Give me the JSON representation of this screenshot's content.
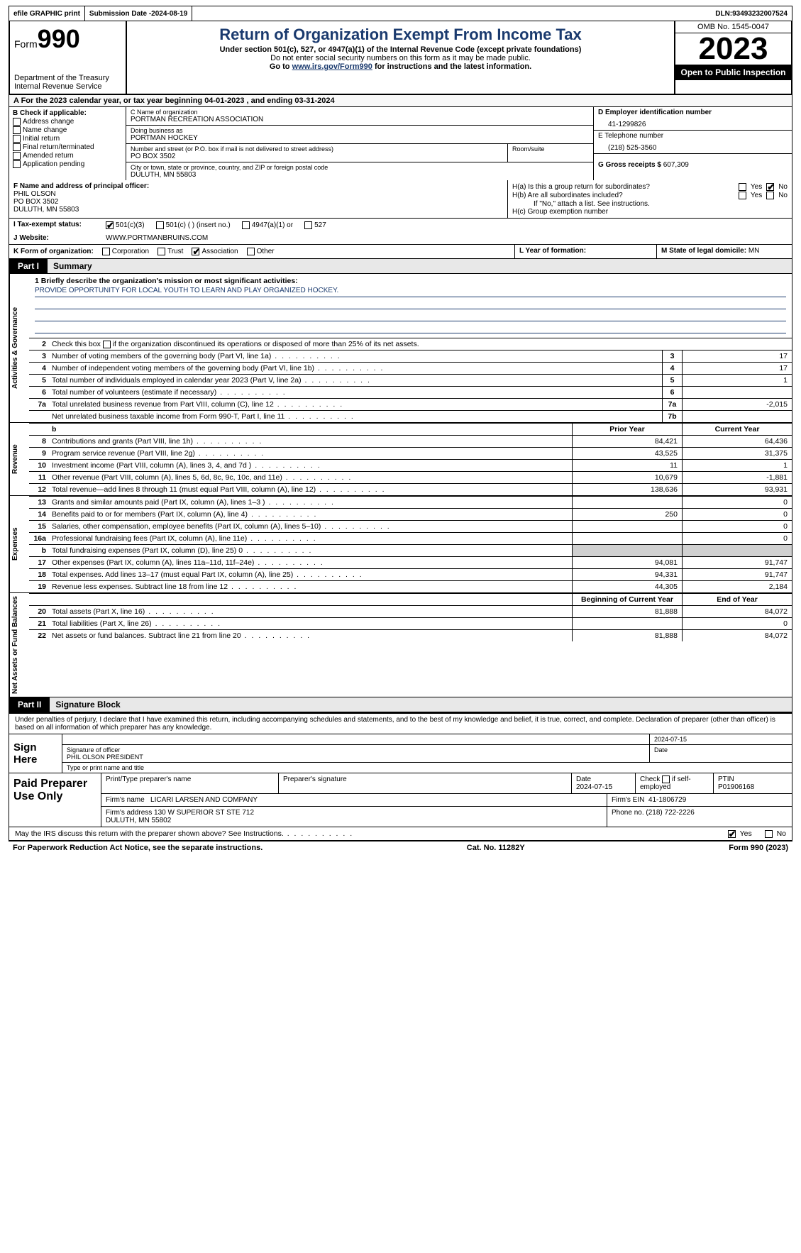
{
  "topbar": {
    "efile": "efile GRAPHIC print",
    "subdate_label": "Submission Date - ",
    "subdate": "2024-08-19",
    "dln_label": "DLN: ",
    "dln": "93493232007524"
  },
  "header": {
    "form_prefix": "Form",
    "form_num": "990",
    "dept": "Department of the Treasury\nInternal Revenue Service",
    "title": "Return of Organization Exempt From Income Tax",
    "sub1": "Under section 501(c), 527, or 4947(a)(1) of the Internal Revenue Code (except private foundations)",
    "sub2": "Do not enter social security numbers on this form as it may be made public.",
    "go_prefix": "Go to ",
    "go_link": "www.irs.gov/Form990",
    "go_suffix": " for instructions and the latest information.",
    "omb": "OMB No. 1545-0047",
    "year": "2023",
    "otpi": "Open to Public Inspection"
  },
  "row_a": "A For the 2023 calendar year, or tax year beginning 04-01-2023   , and ending 03-31-2024",
  "box_b": {
    "label": "B Check if applicable:",
    "items": [
      "Address change",
      "Name change",
      "Initial return",
      "Final return/terminated",
      "Amended return",
      "Application pending"
    ]
  },
  "box_c": {
    "name_lbl": "C Name of organization",
    "name": "PORTMAN RECREATION ASSOCIATION",
    "dba_lbl": "Doing business as",
    "dba": "PORTMAN HOCKEY",
    "street_lbl": "Number and street (or P.O. box if mail is not delivered to street address)",
    "street": "PO BOX 3502",
    "room_lbl": "Room/suite",
    "city_lbl": "City or town, state or province, country, and ZIP or foreign postal code",
    "city": "DULUTH, MN  55803"
  },
  "box_d": {
    "lbl": "D Employer identification number",
    "val": "41-1299826"
  },
  "box_e": {
    "lbl": "E Telephone number",
    "val": "(218) 525-3560"
  },
  "box_g": {
    "lbl": "G Gross receipts $",
    "val": "607,309"
  },
  "box_f": {
    "lbl": "F  Name and address of principal officer:",
    "name": "PHIL OLSON",
    "addr1": "PO BOX 3502",
    "addr2": "DULUTH, MN  55803"
  },
  "box_h": {
    "a": "H(a)  Is this a group return for subordinates?",
    "b": "H(b)  Are all subordinates included?",
    "note": "If \"No,\" attach a list. See instructions.",
    "c": "H(c)  Group exemption number"
  },
  "row_i": {
    "lbl": "I   Tax-exempt status:",
    "opts": [
      "501(c)(3)",
      "501(c) (  ) (insert no.)",
      "4947(a)(1) or",
      "527"
    ]
  },
  "row_j": {
    "lbl": "J   Website:",
    "val": "WWW.PORTMANBRUINS.COM"
  },
  "row_k": {
    "lbl": "K Form of organization:",
    "opts": [
      "Corporation",
      "Trust",
      "Association",
      "Other"
    ]
  },
  "box_l": {
    "lbl": "L Year of formation:",
    "val": ""
  },
  "box_m": {
    "lbl": "M State of legal domicile: ",
    "val": "MN"
  },
  "part1": {
    "tag": "Part I",
    "title": "Summary"
  },
  "mission": {
    "lbl": "1   Briefly describe the organization's mission or most significant activities:",
    "text": "PROVIDE OPPORTUNITY FOR LOCAL YOUTH TO LEARN AND PLAY ORGANIZED HOCKEY."
  },
  "line2": "Check this box        if the organization discontinued its operations or disposed of more than 25% of its net assets.",
  "vtabs": {
    "gov": "Activities & Governance",
    "rev": "Revenue",
    "exp": "Expenses",
    "net": "Net Assets or Fund Balances"
  },
  "gov_rows": [
    {
      "n": "3",
      "d": "Number of voting members of the governing body (Part VI, line 1a)",
      "b": "3",
      "v": "17"
    },
    {
      "n": "4",
      "d": "Number of independent voting members of the governing body (Part VI, line 1b)",
      "b": "4",
      "v": "17"
    },
    {
      "n": "5",
      "d": "Total number of individuals employed in calendar year 2023 (Part V, line 2a)",
      "b": "5",
      "v": "1"
    },
    {
      "n": "6",
      "d": "Total number of volunteers (estimate if necessary)",
      "b": "6",
      "v": ""
    },
    {
      "n": "7a",
      "d": "Total unrelated business revenue from Part VIII, column (C), line 12",
      "b": "7a",
      "v": "-2,015"
    },
    {
      "n": "",
      "d": "Net unrelated business taxable income from Form 990-T, Part I, line 11",
      "b": "7b",
      "v": ""
    }
  ],
  "py_hdr": "Prior Year",
  "cy_hdr": "Current Year",
  "rev_rows": [
    {
      "n": "8",
      "d": "Contributions and grants (Part VIII, line 1h)",
      "py": "84,421",
      "cy": "64,436"
    },
    {
      "n": "9",
      "d": "Program service revenue (Part VIII, line 2g)",
      "py": "43,525",
      "cy": "31,375"
    },
    {
      "n": "10",
      "d": "Investment income (Part VIII, column (A), lines 3, 4, and 7d )",
      "py": "11",
      "cy": "1"
    },
    {
      "n": "11",
      "d": "Other revenue (Part VIII, column (A), lines 5, 6d, 8c, 9c, 10c, and 11e)",
      "py": "10,679",
      "cy": "-1,881"
    },
    {
      "n": "12",
      "d": "Total revenue—add lines 8 through 11 (must equal Part VIII, column (A), line 12)",
      "py": "138,636",
      "cy": "93,931"
    }
  ],
  "exp_rows": [
    {
      "n": "13",
      "d": "Grants and similar amounts paid (Part IX, column (A), lines 1–3 )",
      "py": "",
      "cy": "0"
    },
    {
      "n": "14",
      "d": "Benefits paid to or for members (Part IX, column (A), line 4)",
      "py": "250",
      "cy": "0"
    },
    {
      "n": "15",
      "d": "Salaries, other compensation, employee benefits (Part IX, column (A), lines 5–10)",
      "py": "",
      "cy": "0"
    },
    {
      "n": "16a",
      "d": "Professional fundraising fees (Part IX, column (A), line 11e)",
      "py": "",
      "cy": "0"
    },
    {
      "n": "b",
      "d": "Total fundraising expenses (Part IX, column (D), line 25) 0",
      "py": "shade",
      "cy": "shade"
    },
    {
      "n": "17",
      "d": "Other expenses (Part IX, column (A), lines 11a–11d, 11f–24e)",
      "py": "94,081",
      "cy": "91,747"
    },
    {
      "n": "18",
      "d": "Total expenses. Add lines 13–17 (must equal Part IX, column (A), line 25)",
      "py": "94,331",
      "cy": "91,747"
    },
    {
      "n": "19",
      "d": "Revenue less expenses. Subtract line 18 from line 12",
      "py": "44,305",
      "cy": "2,184"
    }
  ],
  "bcy_hdr": "Beginning of Current Year",
  "eoy_hdr": "End of Year",
  "net_rows": [
    {
      "n": "20",
      "d": "Total assets (Part X, line 16)",
      "py": "81,888",
      "cy": "84,072"
    },
    {
      "n": "21",
      "d": "Total liabilities (Part X, line 26)",
      "py": "",
      "cy": "0"
    },
    {
      "n": "22",
      "d": "Net assets or fund balances. Subtract line 21 from line 20",
      "py": "81,888",
      "cy": "84,072"
    }
  ],
  "part2": {
    "tag": "Part II",
    "title": "Signature Block"
  },
  "perjury": "Under penalties of perjury, I declare that I have examined this return, including accompanying schedules and statements, and to the best of my knowledge and belief, it is true, correct, and complete. Declaration of preparer (other than officer) is based on all information of which preparer has any knowledge.",
  "sign": {
    "here": "Sign Here",
    "sig_lbl": "Signature of officer",
    "date_lbl": "Date",
    "date": "2024-07-15",
    "name": "PHIL OLSON  PRESIDENT",
    "type_lbl": "Type or print name and title"
  },
  "prep": {
    "lbl": "Paid Preparer Use Only",
    "name_lbl": "Print/Type preparer's name",
    "sig_lbl": "Preparer's signature",
    "date_lbl": "Date",
    "date": "2024-07-15",
    "self_lbl": "Check         if self-employed",
    "ptin_lbl": "PTIN",
    "ptin": "P01906168",
    "firm_name_lbl": "Firm's name",
    "firm_name": "LICARI LARSEN AND COMPANY",
    "firm_ein_lbl": "Firm's EIN",
    "firm_ein": "41-1806729",
    "firm_addr_lbl": "Firm's address",
    "firm_addr": "130 W SUPERIOR ST STE 712\nDULUTH, MN  55802",
    "phone_lbl": "Phone no.",
    "phone": "(218) 722-2226"
  },
  "discuss": "May the IRS discuss this return with the preparer shown above? See Instructions.",
  "footer": {
    "left": "For Paperwork Reduction Act Notice, see the separate instructions.",
    "mid": "Cat. No. 11282Y",
    "right": "Form 990 (2023)"
  },
  "yes": "Yes",
  "no": "No"
}
